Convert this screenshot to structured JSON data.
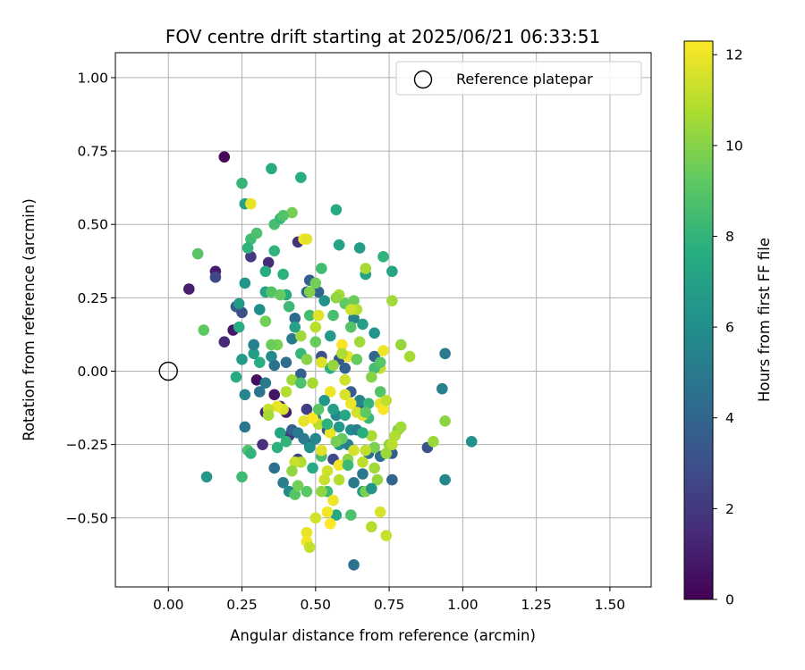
{
  "chart_data": {
    "type": "scatter",
    "title": "FOV centre drift starting at 2025/06/21 06:33:51",
    "xlabel": "Angular distance from reference (arcmin)",
    "ylabel": "Rotation from reference (arcmin)",
    "xlim": [
      -0.18,
      1.64
    ],
    "ylim": [
      -0.735,
      1.085
    ],
    "xticks": [
      0.0,
      0.25,
      0.5,
      0.75,
      1.0,
      1.25,
      1.5
    ],
    "xtick_labels": [
      "0.00",
      "0.25",
      "0.50",
      "0.75",
      "1.00",
      "1.25",
      "1.50"
    ],
    "yticks": [
      -0.5,
      -0.25,
      0.0,
      0.25,
      0.5,
      0.75,
      1.0
    ],
    "ytick_labels": [
      "−0.50",
      "−0.25",
      "0.00",
      "0.25",
      "0.50",
      "0.75",
      "1.00"
    ],
    "grid": true,
    "legend": {
      "position": "top-right",
      "entries": [
        {
          "label": "Reference platepar",
          "marker": "open-circle"
        }
      ]
    },
    "reference_point": {
      "x": 0.0,
      "y": 0.0
    },
    "colorbar": {
      "label": "Hours from first FF file",
      "range": [
        0,
        12.3
      ],
      "ticks": [
        0,
        2,
        4,
        6,
        8,
        10,
        12
      ],
      "tick_labels": [
        "0",
        "2",
        "4",
        "6",
        "8",
        "10",
        "12"
      ],
      "colormap": "viridis"
    },
    "points": [
      {
        "x": 0.19,
        "y": 0.73,
        "h": 0.2
      },
      {
        "x": 0.07,
        "y": 0.28,
        "h": 1.0
      },
      {
        "x": 0.16,
        "y": 0.34,
        "h": 0.9
      },
      {
        "x": 0.16,
        "y": 0.32,
        "h": 2.6
      },
      {
        "x": 0.19,
        "y": 0.1,
        "h": 1.4
      },
      {
        "x": 0.22,
        "y": 0.14,
        "h": 0.8
      },
      {
        "x": 0.23,
        "y": 0.22,
        "h": 3.5
      },
      {
        "x": 0.25,
        "y": 0.2,
        "h": 3.0
      },
      {
        "x": 0.28,
        "y": 0.39,
        "h": 2.1
      },
      {
        "x": 0.3,
        "y": -0.03,
        "h": 0.5
      },
      {
        "x": 0.32,
        "y": -0.25,
        "h": 1.6
      },
      {
        "x": 0.33,
        "y": -0.14,
        "h": 1.3
      },
      {
        "x": 0.34,
        "y": 0.37,
        "h": 1.5
      },
      {
        "x": 0.36,
        "y": -0.08,
        "h": 0.7
      },
      {
        "x": 0.38,
        "y": -0.12,
        "h": 1.2
      },
      {
        "x": 0.4,
        "y": -0.14,
        "h": 1.0
      },
      {
        "x": 0.41,
        "y": -0.22,
        "h": 1.9
      },
      {
        "x": 0.44,
        "y": 0.44,
        "h": 1.8
      },
      {
        "x": 0.47,
        "y": -0.13,
        "h": 2.2
      },
      {
        "x": 0.44,
        "y": -0.3,
        "h": 2.4
      },
      {
        "x": 0.48,
        "y": 0.31,
        "h": 3.7
      },
      {
        "x": 0.47,
        "y": 0.27,
        "h": 4.3
      },
      {
        "x": 0.51,
        "y": 0.27,
        "h": 4.0
      },
      {
        "x": 0.52,
        "y": 0.05,
        "h": 3.1
      },
      {
        "x": 0.54,
        "y": -0.2,
        "h": 3.4
      },
      {
        "x": 0.56,
        "y": -0.3,
        "h": 2.7
      },
      {
        "x": 0.58,
        "y": 0.04,
        "h": 3.3
      },
      {
        "x": 0.6,
        "y": 0.01,
        "h": 3.8
      },
      {
        "x": 0.62,
        "y": -0.07,
        "h": 3.6
      },
      {
        "x": 0.63,
        "y": -0.66,
        "h": 4.6
      },
      {
        "x": 0.65,
        "y": -0.11,
        "h": 4.2
      },
      {
        "x": 0.66,
        "y": -0.35,
        "h": 4.9
      },
      {
        "x": 0.68,
        "y": -0.28,
        "h": 4.5
      },
      {
        "x": 0.7,
        "y": 0.05,
        "h": 4.1
      },
      {
        "x": 0.72,
        "y": -0.29,
        "h": 4.4
      },
      {
        "x": 0.76,
        "y": -0.37,
        "h": 4.0
      },
      {
        "x": 0.76,
        "y": -0.28,
        "h": 3.9
      },
      {
        "x": 0.88,
        "y": -0.26,
        "h": 3.2
      },
      {
        "x": 0.93,
        "y": -0.06,
        "h": 5.4
      },
      {
        "x": 0.94,
        "y": 0.06,
        "h": 5.1
      },
      {
        "x": 0.94,
        "y": -0.37,
        "h": 5.6
      },
      {
        "x": 1.03,
        "y": -0.24,
        "h": 6.2
      },
      {
        "x": 0.25,
        "y": 0.04,
        "h": 6.7
      },
      {
        "x": 0.26,
        "y": -0.08,
        "h": 5.5
      },
      {
        "x": 0.26,
        "y": -0.19,
        "h": 4.8
      },
      {
        "x": 0.26,
        "y": 0.3,
        "h": 6.4
      },
      {
        "x": 0.29,
        "y": 0.06,
        "h": 6.9
      },
      {
        "x": 0.31,
        "y": 0.21,
        "h": 6.0
      },
      {
        "x": 0.33,
        "y": 0.27,
        "h": 7.2
      },
      {
        "x": 0.35,
        "y": 0.05,
        "h": 5.8
      },
      {
        "x": 0.36,
        "y": -0.33,
        "h": 4.6
      },
      {
        "x": 0.39,
        "y": -0.38,
        "h": 5.2
      },
      {
        "x": 0.41,
        "y": -0.41,
        "h": 5.8
      },
      {
        "x": 0.42,
        "y": 0.11,
        "h": 5.0
      },
      {
        "x": 0.43,
        "y": 0.18,
        "h": 4.2
      },
      {
        "x": 0.45,
        "y": -0.01,
        "h": 3.7
      },
      {
        "x": 0.48,
        "y": -0.25,
        "h": 3.5
      },
      {
        "x": 0.5,
        "y": -0.16,
        "h": 5.9
      },
      {
        "x": 0.53,
        "y": 0.24,
        "h": 6.3
      },
      {
        "x": 0.55,
        "y": 0.12,
        "h": 6.6
      },
      {
        "x": 0.57,
        "y": -0.15,
        "h": 5.7
      },
      {
        "x": 0.58,
        "y": -0.25,
        "h": 6.1
      },
      {
        "x": 0.61,
        "y": -0.25,
        "h": 5.3
      },
      {
        "x": 0.63,
        "y": -0.38,
        "h": 5.0
      },
      {
        "x": 0.65,
        "y": -0.1,
        "h": 5.5
      },
      {
        "x": 0.66,
        "y": 0.16,
        "h": 6.8
      },
      {
        "x": 0.67,
        "y": 0.33,
        "h": 7.0
      },
      {
        "x": 0.7,
        "y": 0.13,
        "h": 6.3
      },
      {
        "x": 0.63,
        "y": 0.18,
        "h": 5.4
      },
      {
        "x": 0.37,
        "y": -0.26,
        "h": 7.8
      },
      {
        "x": 0.25,
        "y": 0.64,
        "h": 8.1
      },
      {
        "x": 0.35,
        "y": 0.69,
        "h": 7.4
      },
      {
        "x": 0.45,
        "y": 0.66,
        "h": 7.7
      },
      {
        "x": 0.57,
        "y": 0.55,
        "h": 7.5
      },
      {
        "x": 0.26,
        "y": 0.57,
        "h": 7.0
      },
      {
        "x": 0.28,
        "y": 0.45,
        "h": 8.4
      },
      {
        "x": 0.3,
        "y": 0.47,
        "h": 8.7
      },
      {
        "x": 0.27,
        "y": 0.42,
        "h": 7.9
      },
      {
        "x": 0.33,
        "y": 0.34,
        "h": 7.6
      },
      {
        "x": 0.36,
        "y": 0.41,
        "h": 8.0
      },
      {
        "x": 0.36,
        "y": 0.5,
        "h": 8.6
      },
      {
        "x": 0.38,
        "y": 0.52,
        "h": 8.2
      },
      {
        "x": 0.39,
        "y": 0.33,
        "h": 7.8
      },
      {
        "x": 0.42,
        "y": 0.54,
        "h": 9.7
      },
      {
        "x": 0.1,
        "y": 0.4,
        "h": 9.0
      },
      {
        "x": 0.12,
        "y": 0.14,
        "h": 9.2
      },
      {
        "x": 0.13,
        "y": -0.36,
        "h": 6.5
      },
      {
        "x": 0.23,
        "y": -0.02,
        "h": 7.4
      },
      {
        "x": 0.24,
        "y": 0.15,
        "h": 7.6
      },
      {
        "x": 0.25,
        "y": -0.36,
        "h": 8.4
      },
      {
        "x": 0.27,
        "y": -0.27,
        "h": 8.8
      },
      {
        "x": 0.28,
        "y": -0.28,
        "h": 8.0
      },
      {
        "x": 0.29,
        "y": 0.09,
        "h": 7.9
      },
      {
        "x": 0.33,
        "y": 0.17,
        "h": 9.6
      },
      {
        "x": 0.35,
        "y": 0.27,
        "h": 8.9
      },
      {
        "x": 0.37,
        "y": 0.09,
        "h": 9.8
      },
      {
        "x": 0.38,
        "y": -0.21,
        "h": 7.2
      },
      {
        "x": 0.4,
        "y": 0.26,
        "h": 7.5
      },
      {
        "x": 0.41,
        "y": 0.22,
        "h": 8.3
      },
      {
        "x": 0.43,
        "y": -0.42,
        "h": 9.0
      },
      {
        "x": 0.45,
        "y": 0.06,
        "h": 8.1
      },
      {
        "x": 0.47,
        "y": -0.41,
        "h": 9.1
      },
      {
        "x": 0.48,
        "y": 0.19,
        "h": 8.5
      },
      {
        "x": 0.5,
        "y": 0.1,
        "h": 9.4
      },
      {
        "x": 0.52,
        "y": -0.29,
        "h": 8.6
      },
      {
        "x": 0.54,
        "y": -0.41,
        "h": 8.3
      },
      {
        "x": 0.55,
        "y": 0.01,
        "h": 7.7
      },
      {
        "x": 0.57,
        "y": -0.49,
        "h": 7.3
      },
      {
        "x": 0.58,
        "y": 0.43,
        "h": 7.1
      },
      {
        "x": 0.59,
        "y": -0.23,
        "h": 9.3
      },
      {
        "x": 0.6,
        "y": 0.23,
        "h": 9.2
      },
      {
        "x": 0.62,
        "y": -0.49,
        "h": 8.7
      },
      {
        "x": 0.63,
        "y": 0.24,
        "h": 9.5
      },
      {
        "x": 0.65,
        "y": 0.42,
        "h": 6.8
      },
      {
        "x": 0.66,
        "y": -0.41,
        "h": 7.0
      },
      {
        "x": 0.68,
        "y": -0.16,
        "h": 8.2
      },
      {
        "x": 0.7,
        "y": -0.26,
        "h": 9.8
      },
      {
        "x": 0.72,
        "y": -0.07,
        "h": 8.9
      },
      {
        "x": 0.73,
        "y": 0.39,
        "h": 7.9
      },
      {
        "x": 0.76,
        "y": 0.34,
        "h": 7.1
      },
      {
        "x": 0.78,
        "y": -0.2,
        "h": 9.9
      },
      {
        "x": 0.76,
        "y": 0.24,
        "h": 10.5
      },
      {
        "x": 0.79,
        "y": 0.09,
        "h": 10.3
      },
      {
        "x": 0.82,
        "y": 0.05,
        "h": 10.6
      },
      {
        "x": 0.9,
        "y": -0.24,
        "h": 10.4
      },
      {
        "x": 0.94,
        "y": -0.17,
        "h": 10.1
      },
      {
        "x": 0.77,
        "y": -0.22,
        "h": 10.8
      },
      {
        "x": 0.75,
        "y": -0.25,
        "h": 10.2
      },
      {
        "x": 0.74,
        "y": -0.28,
        "h": 10.4
      },
      {
        "x": 0.74,
        "y": -0.56,
        "h": 11.3
      },
      {
        "x": 0.69,
        "y": -0.53,
        "h": 10.9
      },
      {
        "x": 0.72,
        "y": -0.48,
        "h": 11.6
      },
      {
        "x": 0.71,
        "y": -0.37,
        "h": 10.3
      },
      {
        "x": 0.69,
        "y": -0.22,
        "h": 10.7
      },
      {
        "x": 0.67,
        "y": -0.27,
        "h": 11.1
      },
      {
        "x": 0.66,
        "y": -0.15,
        "h": 11.8
      },
      {
        "x": 0.65,
        "y": 0.1,
        "h": 10.5
      },
      {
        "x": 0.67,
        "y": 0.35,
        "h": 10.6
      },
      {
        "x": 0.64,
        "y": 0.21,
        "h": 10.9
      },
      {
        "x": 0.62,
        "y": 0.21,
        "h": 11.4
      },
      {
        "x": 0.61,
        "y": 0.05,
        "h": 11.9
      },
      {
        "x": 0.59,
        "y": 0.09,
        "h": 12.2
      },
      {
        "x": 0.58,
        "y": 0.26,
        "h": 10.7
      },
      {
        "x": 0.56,
        "y": 0.02,
        "h": 10.3
      },
      {
        "x": 0.55,
        "y": -0.07,
        "h": 12.0
      },
      {
        "x": 0.54,
        "y": -0.34,
        "h": 11.4
      },
      {
        "x": 0.54,
        "y": -0.48,
        "h": 12.1
      },
      {
        "x": 0.55,
        "y": -0.52,
        "h": 12.3
      },
      {
        "x": 0.47,
        "y": -0.55,
        "h": 11.9
      },
      {
        "x": 0.47,
        "y": -0.58,
        "h": 12.1
      },
      {
        "x": 0.48,
        "y": -0.6,
        "h": 11.2
      },
      {
        "x": 0.5,
        "y": -0.5,
        "h": 11.5
      },
      {
        "x": 0.52,
        "y": -0.41,
        "h": 10.2
      },
      {
        "x": 0.52,
        "y": -0.27,
        "h": 11.7
      },
      {
        "x": 0.51,
        "y": -0.18,
        "h": 11.0
      },
      {
        "x": 0.49,
        "y": -0.16,
        "h": 12.3
      },
      {
        "x": 0.46,
        "y": -0.17,
        "h": 11.8
      },
      {
        "x": 0.45,
        "y": -0.31,
        "h": 10.8
      },
      {
        "x": 0.43,
        "y": -0.31,
        "h": 11.3
      },
      {
        "x": 0.42,
        "y": -0.03,
        "h": 10.4
      },
      {
        "x": 0.4,
        "y": -0.07,
        "h": 10.9
      },
      {
        "x": 0.39,
        "y": -0.13,
        "h": 11.6
      },
      {
        "x": 0.37,
        "y": -0.12,
        "h": 11.9
      },
      {
        "x": 0.34,
        "y": -0.13,
        "h": 11.2
      },
      {
        "x": 0.34,
        "y": -0.15,
        "h": 10.6
      },
      {
        "x": 0.46,
        "y": 0.45,
        "h": 12.2
      },
      {
        "x": 0.45,
        "y": 0.12,
        "h": 10.5
      },
      {
        "x": 0.5,
        "y": 0.15,
        "h": 11.0
      },
      {
        "x": 0.51,
        "y": 0.19,
        "h": 11.7
      },
      {
        "x": 0.57,
        "y": 0.25,
        "h": 10.2
      },
      {
        "x": 0.59,
        "y": 0.06,
        "h": 10.8
      },
      {
        "x": 0.6,
        "y": -0.03,
        "h": 11.4
      },
      {
        "x": 0.62,
        "y": -0.11,
        "h": 12.0
      },
      {
        "x": 0.64,
        "y": -0.14,
        "h": 11.5
      },
      {
        "x": 0.66,
        "y": -0.31,
        "h": 11.1
      },
      {
        "x": 0.7,
        "y": -0.33,
        "h": 10.5
      },
      {
        "x": 0.72,
        "y": -0.11,
        "h": 11.8
      },
      {
        "x": 0.73,
        "y": -0.13,
        "h": 12.2
      },
      {
        "x": 0.73,
        "y": 0.07,
        "h": 12.0
      },
      {
        "x": 0.72,
        "y": 0.01,
        "h": 11.2
      },
      {
        "x": 0.79,
        "y": -0.19,
        "h": 10.5
      },
      {
        "x": 0.76,
        "y": -0.25,
        "h": 11.0
      },
      {
        "x": 0.58,
        "y": -0.32,
        "h": 12.1
      },
      {
        "x": 0.55,
        "y": -0.21,
        "h": 11.9
      },
      {
        "x": 0.6,
        "y": -0.08,
        "h": 11.6
      },
      {
        "x": 0.52,
        "y": 0.03,
        "h": 11.7
      },
      {
        "x": 0.53,
        "y": -0.37,
        "h": 11.3
      },
      {
        "x": 0.56,
        "y": -0.44,
        "h": 12.0
      },
      {
        "x": 0.28,
        "y": 0.57,
        "h": 11.9
      },
      {
        "x": 0.47,
        "y": 0.45,
        "h": 11.8
      },
      {
        "x": 0.5,
        "y": 0.3,
        "h": 9.6
      },
      {
        "x": 0.52,
        "y": 0.35,
        "h": 8.4
      },
      {
        "x": 0.39,
        "y": 0.53,
        "h": 8.9
      },
      {
        "x": 0.29,
        "y": 0.09,
        "h": 5.3
      },
      {
        "x": 0.31,
        "y": -0.07,
        "h": 4.7
      },
      {
        "x": 0.33,
        "y": -0.04,
        "h": 5.0
      },
      {
        "x": 0.36,
        "y": 0.02,
        "h": 4.6
      },
      {
        "x": 0.4,
        "y": 0.03,
        "h": 4.4
      },
      {
        "x": 0.42,
        "y": -0.2,
        "h": 3.8
      },
      {
        "x": 0.44,
        "y": -0.21,
        "h": 4.9
      },
      {
        "x": 0.46,
        "y": -0.23,
        "h": 5.1
      },
      {
        "x": 0.48,
        "y": -0.26,
        "h": 6.1
      },
      {
        "x": 0.5,
        "y": -0.23,
        "h": 5.6
      },
      {
        "x": 0.53,
        "y": -0.1,
        "h": 6.4
      },
      {
        "x": 0.56,
        "y": -0.13,
        "h": 6.9
      },
      {
        "x": 0.58,
        "y": -0.19,
        "h": 6.6
      },
      {
        "x": 0.6,
        "y": -0.15,
        "h": 7.3
      },
      {
        "x": 0.62,
        "y": -0.2,
        "h": 6.0
      },
      {
        "x": 0.64,
        "y": -0.2,
        "h": 5.2
      },
      {
        "x": 0.66,
        "y": -0.21,
        "h": 7.7
      },
      {
        "x": 0.68,
        "y": -0.11,
        "h": 8.1
      },
      {
        "x": 0.7,
        "y": 0.01,
        "h": 8.5
      },
      {
        "x": 0.72,
        "y": 0.03,
        "h": 9.0
      },
      {
        "x": 0.64,
        "y": 0.04,
        "h": 9.4
      },
      {
        "x": 0.62,
        "y": 0.15,
        "h": 8.9
      },
      {
        "x": 0.56,
        "y": 0.19,
        "h": 8.6
      },
      {
        "x": 0.48,
        "y": 0.27,
        "h": 9.9
      },
      {
        "x": 0.38,
        "y": 0.26,
        "h": 9.3
      },
      {
        "x": 0.35,
        "y": 0.09,
        "h": 9.5
      },
      {
        "x": 0.31,
        "y": 0.03,
        "h": 7.6
      },
      {
        "x": 0.24,
        "y": 0.23,
        "h": 6.6
      },
      {
        "x": 0.43,
        "y": 0.15,
        "h": 7.0
      },
      {
        "x": 0.45,
        "y": -0.04,
        "h": 8.7
      },
      {
        "x": 0.47,
        "y": 0.04,
        "h": 10.0
      },
      {
        "x": 0.49,
        "y": -0.04,
        "h": 10.6
      },
      {
        "x": 0.51,
        "y": -0.13,
        "h": 9.1
      },
      {
        "x": 0.54,
        "y": -0.18,
        "h": 7.9
      },
      {
        "x": 0.57,
        "y": -0.24,
        "h": 9.7
      },
      {
        "x": 0.61,
        "y": -0.3,
        "h": 10.1
      },
      {
        "x": 0.63,
        "y": -0.27,
        "h": 11.5
      },
      {
        "x": 0.67,
        "y": -0.14,
        "h": 9.2
      },
      {
        "x": 0.69,
        "y": -0.02,
        "h": 10.0
      },
      {
        "x": 0.74,
        "y": -0.1,
        "h": 11.1
      },
      {
        "x": 0.4,
        "y": -0.24,
        "h": 8.0
      },
      {
        "x": 0.42,
        "y": -0.34,
        "h": 10.2
      },
      {
        "x": 0.44,
        "y": -0.39,
        "h": 9.6
      },
      {
        "x": 0.49,
        "y": -0.33,
        "h": 7.4
      },
      {
        "x": 0.58,
        "y": -0.37,
        "h": 10.9
      },
      {
        "x": 0.61,
        "y": -0.32,
        "h": 8.3
      },
      {
        "x": 0.67,
        "y": -0.41,
        "h": 9.8
      },
      {
        "x": 0.69,
        "y": -0.4,
        "h": 6.3
      }
    ]
  }
}
